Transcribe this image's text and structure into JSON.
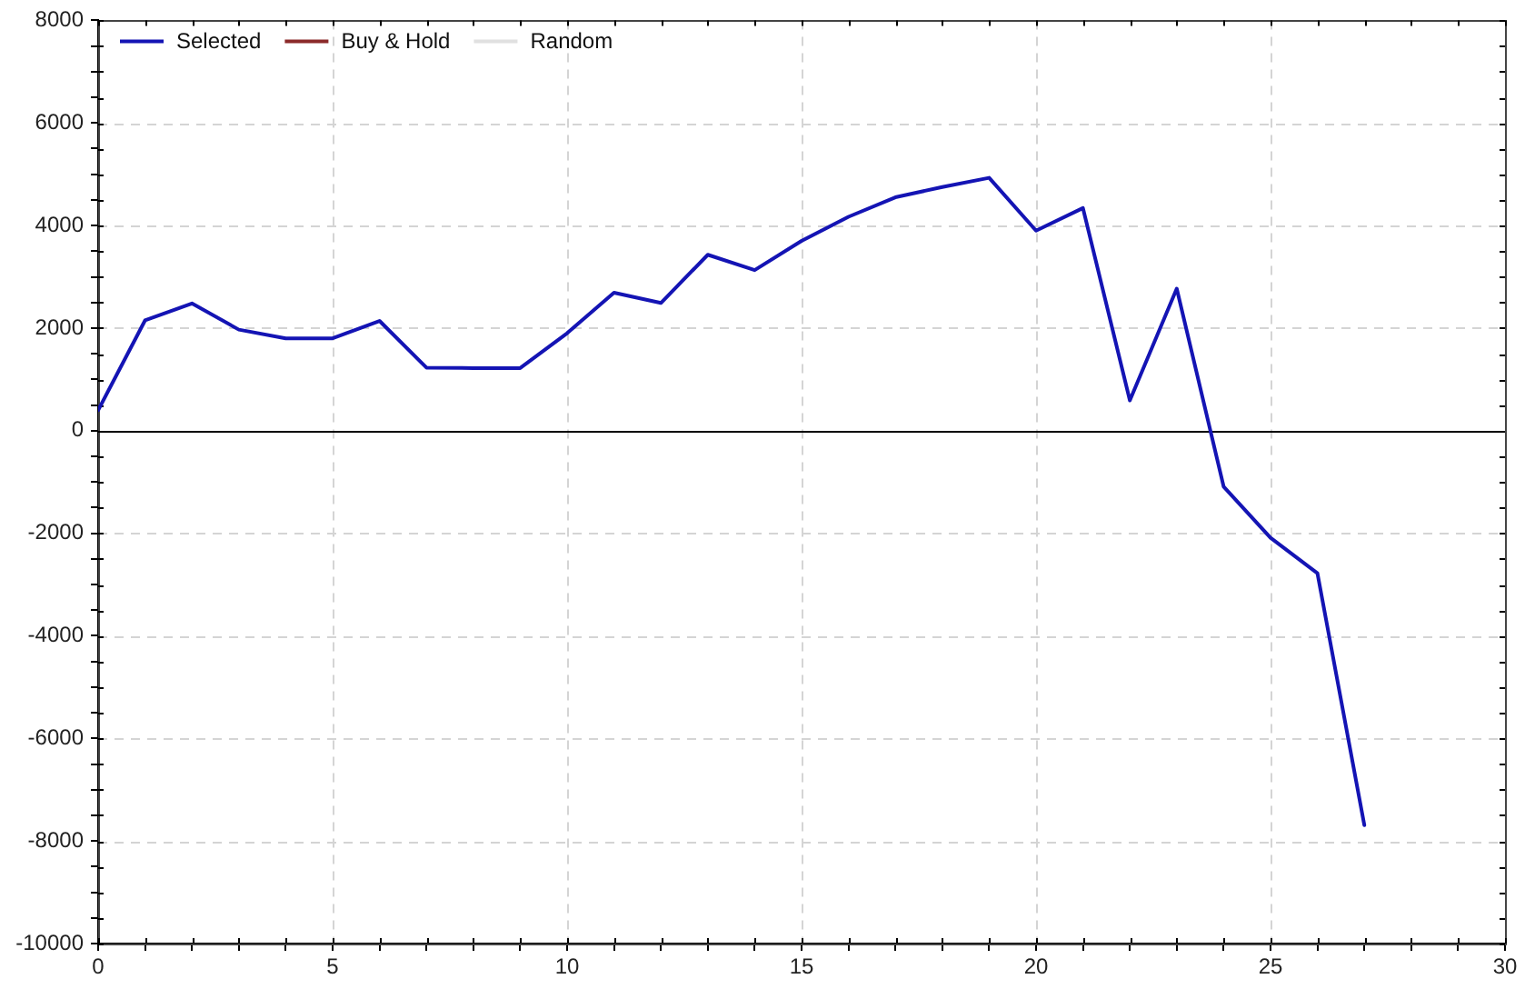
{
  "chart_data": {
    "type": "line",
    "x": [
      0,
      1,
      2,
      3,
      4,
      5,
      6,
      7,
      8,
      9,
      10,
      11,
      12,
      13,
      14,
      15,
      16,
      17,
      18,
      19,
      20,
      21,
      22,
      23,
      24,
      25,
      26,
      27
    ],
    "series": [
      {
        "name": "Selected",
        "color": "#1414b4",
        "values": [
          400,
          2150,
          2480,
          1970,
          1800,
          1800,
          2140,
          1230,
          1220,
          1220,
          1900,
          2690,
          2490,
          3430,
          3130,
          3700,
          4170,
          4550,
          4750,
          4930,
          3900,
          4340,
          590,
          2770,
          -1090,
          -2090,
          -2780,
          -7690
        ]
      },
      {
        "name": "Buy & Hold",
        "color": "#8b2a2a",
        "values": [
          null,
          null,
          null,
          null,
          null,
          null,
          null,
          null,
          null,
          null,
          null,
          null,
          null,
          null,
          null,
          null,
          null,
          null,
          null,
          null,
          null,
          null,
          null,
          null,
          null,
          null,
          null,
          null
        ]
      },
      {
        "name": "Random",
        "color": "#e0e0e0",
        "values": [
          null,
          null,
          null,
          null,
          null,
          null,
          null,
          null,
          null,
          null,
          null,
          null,
          null,
          null,
          null,
          null,
          null,
          null,
          null,
          null,
          null,
          null,
          null,
          null,
          null,
          null,
          null,
          null
        ]
      }
    ],
    "xlim": [
      0,
      30
    ],
    "xticks": [
      0,
      {
        "value": 1,
        "label": null
      },
      {
        "value": 2,
        "label": null
      },
      {
        "value": 3,
        "label": null
      },
      {
        "value": 4,
        "label": null
      },
      5,
      {
        "value": 6,
        "label": null
      },
      {
        "value": 7,
        "label": null
      },
      {
        "value": 8,
        "label": null
      },
      {
        "value": 9,
        "label": null
      },
      10,
      {
        "value": 11,
        "label": null
      },
      {
        "value": 12,
        "label": null
      },
      {
        "value": 13,
        "label": null
      },
      {
        "value": 14,
        "label": null
      },
      15,
      {
        "value": 16,
        "label": null
      },
      {
        "value": 17,
        "label": null
      },
      {
        "value": 18,
        "label": null
      },
      {
        "value": 19,
        "label": null
      },
      20,
      {
        "value": 21,
        "label": null
      },
      {
        "value": 22,
        "label": null
      },
      {
        "value": 23,
        "label": null
      },
      {
        "value": 24,
        "label": null
      },
      25,
      {
        "value": 26,
        "label": null
      },
      {
        "value": 27,
        "label": null
      },
      {
        "value": 28,
        "label": null
      },
      {
        "value": 29,
        "label": null
      },
      30
    ],
    "ylim": [
      -10000,
      8000
    ],
    "yticks": [
      -10000,
      {
        "value": -9500,
        "label": null
      },
      {
        "value": -9000,
        "label": null
      },
      {
        "value": -8500,
        "label": null
      },
      -8000,
      {
        "value": -7500,
        "label": null
      },
      {
        "value": -7000,
        "label": null
      },
      {
        "value": -6500,
        "label": null
      },
      -6000,
      {
        "value": -5500,
        "label": null
      },
      {
        "value": -5000,
        "label": null
      },
      {
        "value": -4500,
        "label": null
      },
      -4000,
      {
        "value": -3500,
        "label": null
      },
      {
        "value": -3000,
        "label": null
      },
      {
        "value": -2500,
        "label": null
      },
      -2000,
      {
        "value": -1500,
        "label": null
      },
      {
        "value": -1000,
        "label": null
      },
      {
        "value": -500,
        "label": null
      },
      0,
      {
        "value": 500,
        "label": null
      },
      {
        "value": 1000,
        "label": null
      },
      {
        "value": 1500,
        "label": null
      },
      2000,
      {
        "value": 2500,
        "label": null
      },
      {
        "value": 3000,
        "label": null
      },
      {
        "value": 3500,
        "label": null
      },
      4000,
      {
        "value": 4500,
        "label": null
      },
      {
        "value": 5000,
        "label": null
      },
      {
        "value": 5500,
        "label": null
      },
      6000,
      {
        "value": 6500,
        "label": null
      },
      {
        "value": 7000,
        "label": null
      },
      {
        "value": 7500,
        "label": null
      },
      8000
    ],
    "ref_lines": [
      {
        "axis": "y",
        "value": 0,
        "color": "#000000",
        "line_style": "solid"
      }
    ],
    "grid": true,
    "legend": "top left",
    "marker": "none",
    "line_style": "solid"
  }
}
